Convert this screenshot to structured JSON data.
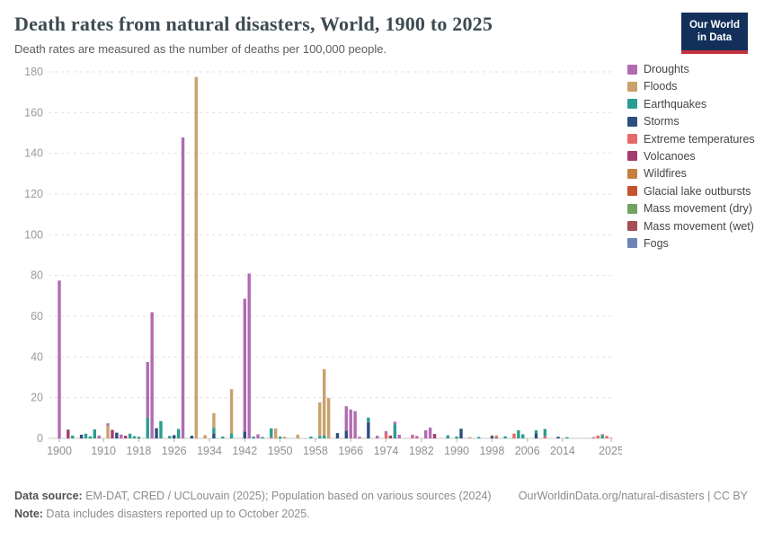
{
  "header": {
    "title": "Death rates from natural disasters, World, 1900 to 2025",
    "subtitle": "Death rates are measured as the number of deaths per 100,000 people.",
    "logo": {
      "line1": "Our World",
      "line2": "in Data",
      "bg_color": "#12305a",
      "accent_color": "#c3313d"
    }
  },
  "chart_data": {
    "type": "bar",
    "variant": "stacked-by-year",
    "title": "Death rates from natural disasters, World, 1900 to 2025",
    "xlabel": "",
    "ylabel": "deaths per 100,000 people",
    "ylim": [
      0,
      180
    ],
    "yticks": [
      0,
      20,
      40,
      60,
      80,
      100,
      120,
      140,
      160,
      180
    ],
    "x_range": [
      1900,
      2025
    ],
    "xticks": [
      1900,
      1910,
      1918,
      1926,
      1934,
      1942,
      1950,
      1958,
      1966,
      1974,
      1982,
      1990,
      1998,
      2006,
      2014,
      2025
    ],
    "grid": "dashed-horizontal",
    "legend_position": "right",
    "series_legend": [
      {
        "key": "droughts",
        "name": "Droughts",
        "color": "#b26bb2"
      },
      {
        "key": "floods",
        "name": "Floods",
        "color": "#c9a16a"
      },
      {
        "key": "earthquakes",
        "name": "Earthquakes",
        "color": "#2b9d90"
      },
      {
        "key": "storms",
        "name": "Storms",
        "color": "#2e4f7d"
      },
      {
        "key": "extreme_temperatures",
        "name": "Extreme temperatures",
        "color": "#e56a6a"
      },
      {
        "key": "volcanoes",
        "name": "Volcanoes",
        "color": "#a43c70"
      },
      {
        "key": "wildfires",
        "name": "Wildfires",
        "color": "#c77f3e"
      },
      {
        "key": "glacial_lake_outbursts",
        "name": "Glacial lake outbursts",
        "color": "#c4522e"
      },
      {
        "key": "mass_movement_dry",
        "name": "Mass movement (dry)",
        "color": "#6fa263"
      },
      {
        "key": "mass_movement_wet",
        "name": "Mass movement (wet)",
        "color": "#a34f55"
      },
      {
        "key": "fogs",
        "name": "Fogs",
        "color": "#6d84b6"
      }
    ],
    "bars": [
      {
        "year": 1900,
        "segments": [
          [
            "droughts",
            77.5
          ]
        ]
      },
      {
        "year": 1902,
        "segments": [
          [
            "volcanoes",
            4.3
          ]
        ]
      },
      {
        "year": 1903,
        "segments": [
          [
            "earthquakes",
            1.4
          ]
        ]
      },
      {
        "year": 1905,
        "segments": [
          [
            "storms",
            1.8
          ]
        ]
      },
      {
        "year": 1906,
        "segments": [
          [
            "earthquakes",
            2.3
          ]
        ]
      },
      {
        "year": 1907,
        "segments": [
          [
            "earthquakes",
            1.0
          ]
        ]
      },
      {
        "year": 1908,
        "segments": [
          [
            "earthquakes",
            4.4
          ]
        ]
      },
      {
        "year": 1909,
        "segments": [
          [
            "droughts",
            1.4
          ]
        ]
      },
      {
        "year": 1911,
        "segments": [
          [
            "floods",
            6.2
          ],
          [
            "droughts",
            1.2
          ]
        ]
      },
      {
        "year": 1912,
        "segments": [
          [
            "volcanoes",
            4.2
          ]
        ]
      },
      {
        "year": 1913,
        "segments": [
          [
            "storms",
            2.8
          ]
        ]
      },
      {
        "year": 1914,
        "segments": [
          [
            "droughts",
            1.9
          ]
        ]
      },
      {
        "year": 1915,
        "segments": [
          [
            "volcanoes",
            1.3
          ]
        ]
      },
      {
        "year": 1916,
        "segments": [
          [
            "earthquakes",
            2.3
          ]
        ]
      },
      {
        "year": 1917,
        "segments": [
          [
            "earthquakes",
            1.1
          ]
        ]
      },
      {
        "year": 1918,
        "segments": [
          [
            "earthquakes",
            0.8
          ]
        ]
      },
      {
        "year": 1920,
        "segments": [
          [
            "earthquakes",
            10.2
          ],
          [
            "droughts",
            27.3
          ]
        ]
      },
      {
        "year": 1921,
        "segments": [
          [
            "droughts",
            62.0
          ]
        ]
      },
      {
        "year": 1922,
        "segments": [
          [
            "storms",
            5.0
          ]
        ]
      },
      {
        "year": 1923,
        "segments": [
          [
            "earthquakes",
            8.5
          ]
        ]
      },
      {
        "year": 1925,
        "segments": [
          [
            "earthquakes",
            1.2
          ]
        ]
      },
      {
        "year": 1926,
        "segments": [
          [
            "storms",
            1.6
          ]
        ]
      },
      {
        "year": 1927,
        "segments": [
          [
            "earthquakes",
            4.6
          ]
        ]
      },
      {
        "year": 1928,
        "segments": [
          [
            "droughts",
            147.8
          ]
        ]
      },
      {
        "year": 1930,
        "segments": [
          [
            "storms",
            1.3
          ]
        ]
      },
      {
        "year": 1931,
        "segments": [
          [
            "floods",
            177.5
          ]
        ]
      },
      {
        "year": 1933,
        "segments": [
          [
            "floods",
            1.6
          ]
        ]
      },
      {
        "year": 1935,
        "segments": [
          [
            "storms",
            2.5
          ],
          [
            "earthquakes",
            2.6
          ],
          [
            "floods",
            7.3
          ]
        ]
      },
      {
        "year": 1937,
        "segments": [
          [
            "earthquakes",
            0.9
          ]
        ]
      },
      {
        "year": 1939,
        "segments": [
          [
            "earthquakes",
            2.4
          ],
          [
            "floods",
            21.8
          ]
        ]
      },
      {
        "year": 1942,
        "segments": [
          [
            "storms",
            3.4
          ],
          [
            "droughts",
            65.2
          ]
        ]
      },
      {
        "year": 1943,
        "segments": [
          [
            "droughts",
            81.0
          ]
        ]
      },
      {
        "year": 1944,
        "segments": [
          [
            "earthquakes",
            0.9
          ]
        ]
      },
      {
        "year": 1945,
        "segments": [
          [
            "droughts",
            2.0
          ]
        ]
      },
      {
        "year": 1946,
        "segments": [
          [
            "earthquakes",
            0.7
          ]
        ]
      },
      {
        "year": 1948,
        "segments": [
          [
            "extreme_temperatures",
            0.6
          ],
          [
            "earthquakes",
            4.3
          ]
        ]
      },
      {
        "year": 1949,
        "segments": [
          [
            "floods",
            4.9
          ]
        ]
      },
      {
        "year": 1950,
        "segments": [
          [
            "earthquakes",
            0.9
          ]
        ]
      },
      {
        "year": 1951,
        "segments": [
          [
            "floods",
            0.8
          ]
        ]
      },
      {
        "year": 1954,
        "segments": [
          [
            "floods",
            1.8
          ]
        ]
      },
      {
        "year": 1957,
        "segments": [
          [
            "earthquakes",
            0.9
          ]
        ]
      },
      {
        "year": 1959,
        "segments": [
          [
            "earthquakes",
            1.2
          ],
          [
            "floods",
            16.5
          ]
        ]
      },
      {
        "year": 1960,
        "segments": [
          [
            "earthquakes",
            1.5
          ],
          [
            "floods",
            32.5
          ]
        ]
      },
      {
        "year": 1961,
        "segments": [
          [
            "floods",
            19.8
          ]
        ]
      },
      {
        "year": 1963,
        "segments": [
          [
            "storms",
            2.6
          ]
        ]
      },
      {
        "year": 1965,
        "segments": [
          [
            "storms",
            3.8
          ],
          [
            "droughts",
            12.0
          ]
        ]
      },
      {
        "year": 1966,
        "segments": [
          [
            "droughts",
            14.2
          ]
        ]
      },
      {
        "year": 1967,
        "segments": [
          [
            "droughts",
            13.4
          ]
        ]
      },
      {
        "year": 1968,
        "segments": [
          [
            "droughts",
            0.8
          ]
        ]
      },
      {
        "year": 1970,
        "segments": [
          [
            "storms",
            7.9
          ],
          [
            "earthquakes",
            2.3
          ]
        ]
      },
      {
        "year": 1972,
        "segments": [
          [
            "droughts",
            1.3
          ]
        ]
      },
      {
        "year": 1974,
        "segments": [
          [
            "extreme_temperatures",
            2.4
          ],
          [
            "droughts",
            1.1
          ]
        ]
      },
      {
        "year": 1975,
        "segments": [
          [
            "volcanoes",
            1.4
          ]
        ]
      },
      {
        "year": 1976,
        "segments": [
          [
            "earthquakes",
            7.0
          ],
          [
            "droughts",
            1.2
          ]
        ]
      },
      {
        "year": 1977,
        "segments": [
          [
            "droughts",
            1.8
          ]
        ]
      },
      {
        "year": 1980,
        "segments": [
          [
            "extreme_temperatures",
            0.9
          ],
          [
            "droughts",
            0.9
          ]
        ]
      },
      {
        "year": 1981,
        "segments": [
          [
            "droughts",
            1.2
          ]
        ]
      },
      {
        "year": 1983,
        "segments": [
          [
            "droughts",
            4.0
          ]
        ]
      },
      {
        "year": 1984,
        "segments": [
          [
            "droughts",
            5.3
          ]
        ]
      },
      {
        "year": 1985,
        "segments": [
          [
            "volcanoes",
            2.2
          ]
        ]
      },
      {
        "year": 1988,
        "segments": [
          [
            "earthquakes",
            1.5
          ]
        ]
      },
      {
        "year": 1990,
        "segments": [
          [
            "earthquakes",
            0.9
          ]
        ]
      },
      {
        "year": 1991,
        "segments": [
          [
            "storms",
            4.5
          ],
          [
            "earthquakes",
            0.4
          ]
        ]
      },
      {
        "year": 1993,
        "segments": [
          [
            "floods",
            0.6
          ]
        ]
      },
      {
        "year": 1995,
        "segments": [
          [
            "earthquakes",
            0.7
          ]
        ]
      },
      {
        "year": 1998,
        "segments": [
          [
            "storms",
            1.1
          ],
          [
            "floods",
            0.5
          ]
        ]
      },
      {
        "year": 1999,
        "segments": [
          [
            "mass_movement_wet",
            0.6
          ],
          [
            "floods",
            0.9
          ]
        ]
      },
      {
        "year": 2001,
        "segments": [
          [
            "earthquakes",
            1.0
          ]
        ]
      },
      {
        "year": 2003,
        "segments": [
          [
            "extreme_temperatures",
            2.4
          ]
        ]
      },
      {
        "year": 2004,
        "segments": [
          [
            "earthquakes",
            4.0
          ]
        ]
      },
      {
        "year": 2005,
        "segments": [
          [
            "earthquakes",
            2.0
          ]
        ]
      },
      {
        "year": 2008,
        "segments": [
          [
            "storms",
            2.4
          ],
          [
            "earthquakes",
            1.6
          ]
        ]
      },
      {
        "year": 2010,
        "segments": [
          [
            "extreme_temperatures",
            1.0
          ],
          [
            "earthquakes",
            3.6
          ]
        ]
      },
      {
        "year": 2013,
        "segments": [
          [
            "storms",
            0.8
          ]
        ]
      },
      {
        "year": 2015,
        "segments": [
          [
            "earthquakes",
            0.6
          ]
        ]
      },
      {
        "year": 2021,
        "segments": [
          [
            "extreme_temperatures",
            0.6
          ]
        ]
      },
      {
        "year": 2022,
        "segments": [
          [
            "extreme_temperatures",
            1.4
          ]
        ]
      },
      {
        "year": 2023,
        "segments": [
          [
            "earthquakes",
            1.7
          ],
          [
            "extreme_temperatures",
            0.4
          ]
        ]
      },
      {
        "year": 2024,
        "segments": [
          [
            "extreme_temperatures",
            1.2
          ]
        ]
      },
      {
        "year": 2025,
        "segments": [
          [
            "extreme_temperatures",
            0.3
          ]
        ]
      }
    ]
  },
  "footer": {
    "source_label": "Data source:",
    "source_text": " EM-DAT, CRED / UCLouvain (2025); Population based on various sources (2024)",
    "link_text": "OurWorldinData.org/natural-disasters | CC BY",
    "note_label": "Note:",
    "note_text": " Data includes disasters reported up to October 2025."
  }
}
